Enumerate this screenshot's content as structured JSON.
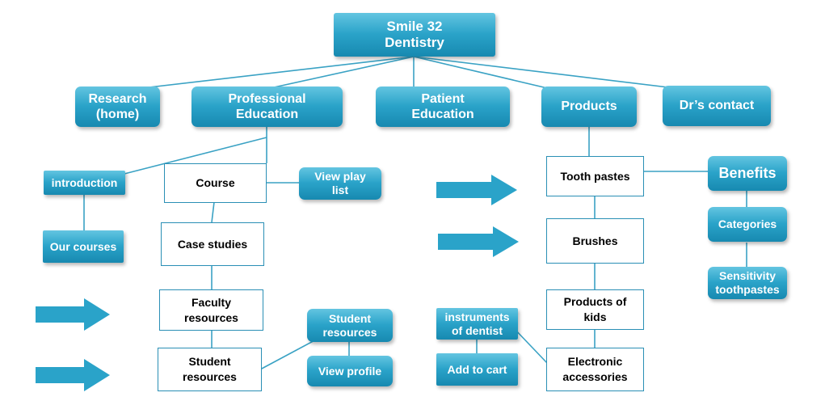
{
  "root": {
    "label": "Smile 32\nDentistry"
  },
  "main_nav": {
    "research": "Research\n(home)",
    "professional_education": "Professional\nEducation",
    "patient_education": "Patient\nEducation",
    "products": "Products",
    "drs_contact": "Dr’s contact"
  },
  "professional": {
    "introduction": "introduction",
    "our_courses": "Our courses",
    "course": "Course",
    "view_play_list": "View play\nlist",
    "case_studies": "Case studies",
    "faculty_resources": "Faculty\nresources",
    "student_resources": "Student\nresources",
    "student_resources_sub": "Student\nresources",
    "view_profile": "View profile"
  },
  "products": {
    "tooth_pastes": "Tooth pastes",
    "benefits": "Benefits",
    "categories": "Categories",
    "sensitivity_toothpastes": "Sensitivity\ntoothpastes",
    "brushes": "Brushes",
    "products_of_kids": "Products of\nkids",
    "instruments_of_dentist": "instruments\nof dentist",
    "add_to_cart": "Add to cart",
    "electronic_accessories": "Electronic\naccessories"
  },
  "colors": {
    "node_fill": "#2aa3c9",
    "node_text": "#ffffff",
    "box_border": "#2a8fb5",
    "connector": "#3aa2c4"
  }
}
